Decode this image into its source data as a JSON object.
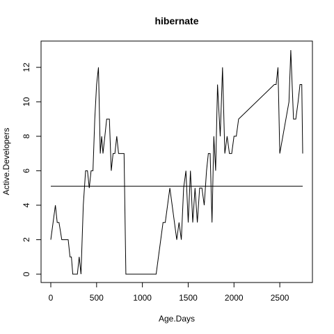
{
  "chart_data": {
    "type": "line",
    "title": "hibernate",
    "xlabel": "Age.Days",
    "ylabel": "Active.Developers",
    "xlim": [
      0,
      2750
    ],
    "ylim": [
      0,
      13
    ],
    "xticks": [
      0,
      500,
      1000,
      1500,
      2000,
      2500
    ],
    "yticks": [
      0,
      2,
      4,
      6,
      8,
      10,
      12
    ],
    "grid": false,
    "series": [
      {
        "x": [
          0,
          25,
          50,
          70,
          90,
          120,
          150,
          175,
          190,
          210,
          225,
          240,
          265,
          290,
          310,
          330,
          355,
          380,
          400,
          420,
          440,
          460,
          480,
          500,
          520,
          540,
          555,
          570,
          590,
          610,
          640,
          660,
          680,
          700,
          720,
          740,
          760,
          780,
          800,
          820,
          840,
          860,
          900,
          1000,
          1100,
          1150,
          1200,
          1225,
          1250,
          1300,
          1325,
          1350,
          1375,
          1400,
          1425,
          1450,
          1475,
          1500,
          1525,
          1550,
          1575,
          1600,
          1625,
          1650,
          1675,
          1700,
          1720,
          1740,
          1760,
          1780,
          1800,
          1820,
          1850,
          1875,
          1900,
          1925,
          1950,
          1975,
          2000,
          2025,
          2050,
          2440,
          2460,
          2480,
          2500,
          2600,
          2620,
          2650,
          2675,
          2700,
          2720,
          2740,
          2750
        ],
        "y": [
          2,
          3,
          4,
          3,
          3,
          2,
          2,
          2,
          2,
          1,
          1,
          0,
          0,
          0,
          1,
          0,
          4,
          6,
          6,
          5,
          6,
          6,
          9,
          11,
          12,
          7,
          8,
          7,
          8,
          9,
          9,
          6,
          7,
          7,
          8,
          7,
          7,
          7,
          7,
          0,
          0,
          0,
          0,
          0,
          0,
          0,
          2,
          3,
          3,
          5,
          4,
          3,
          2,
          3,
          2,
          5,
          6,
          3,
          6,
          3,
          5,
          3,
          5,
          5,
          4,
          6,
          7,
          7,
          3,
          8,
          6,
          11,
          8,
          12,
          7,
          8,
          7,
          7,
          8,
          8,
          9,
          11,
          11,
          12,
          7,
          10,
          13,
          9,
          9,
          10,
          11,
          11,
          7
        ]
      }
    ],
    "hlines": [
      5.1
    ]
  }
}
